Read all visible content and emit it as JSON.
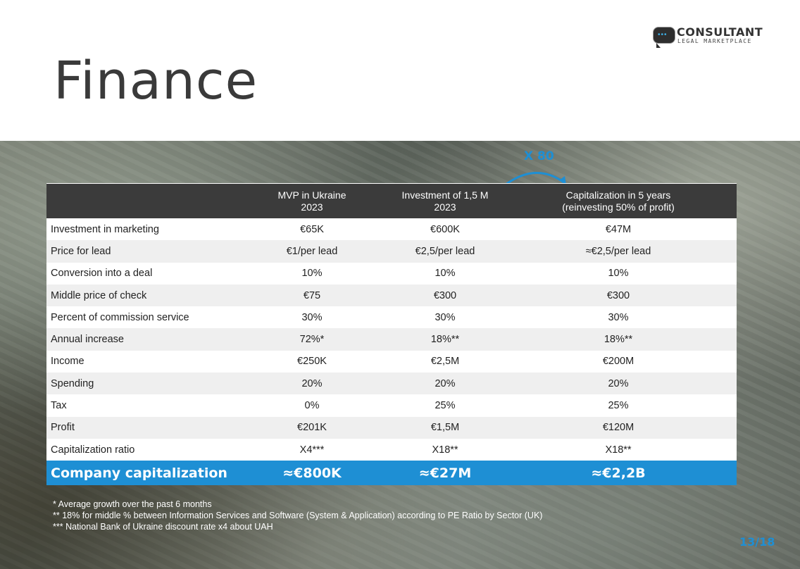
{
  "title": "Finance",
  "logo": {
    "main": "CONSULTANT",
    "sub": "LEGAL MARKETPLACE",
    "icon": "chat-bubble-icon"
  },
  "annotation": "X 80",
  "table": {
    "headers": [
      {
        "line1": "",
        "line2": ""
      },
      {
        "line1": "MVP in Ukraine",
        "line2": "2023"
      },
      {
        "line1": "Investment of 1,5 M",
        "line2": "2023"
      },
      {
        "line1": "Capitalization in 5 years",
        "line2": "(reinvesting 50% of profit)"
      }
    ],
    "rows": [
      [
        "Investment in marketing",
        "€65K",
        "€600K",
        "€47M"
      ],
      [
        "Price for lead",
        "€1/per lead",
        "€2,5/per lead",
        "≈€2,5/per lead"
      ],
      [
        "Conversion into a deal",
        "10%",
        "10%",
        "10%"
      ],
      [
        "Middle price of check",
        "€75",
        "€300",
        "€300"
      ],
      [
        "Percent of commission service",
        "30%",
        "30%",
        "30%"
      ],
      [
        "Annual increase",
        "72%*",
        "18%**",
        "18%**"
      ],
      [
        "Income",
        "€250K",
        "€2,5M",
        "€200M"
      ],
      [
        "Spending",
        "20%",
        "20%",
        "20%"
      ],
      [
        "Tax",
        "0%",
        "25%",
        "25%"
      ],
      [
        "Profit",
        "€201K",
        "€1,5M",
        "€120M"
      ],
      [
        "Capitalization ratio",
        "X4***",
        "X18**",
        "X18**"
      ]
    ],
    "total": [
      "Company capitalization",
      "≈€800K",
      "≈€27M",
      "≈€2,2B"
    ]
  },
  "notes": [
    "* Average growth over the past 6 months",
    "** 18% for middle % between Information Services and Software (System & Application) according to PE Ratio by Sector (UK)",
    "*** National Bank of Ukraine discount rate x4 about UAH"
  ],
  "page": "13/18",
  "colors": {
    "accent": "#1e8fd4",
    "header_bg": "#3b3b3b",
    "title": "#3a3a3a"
  }
}
